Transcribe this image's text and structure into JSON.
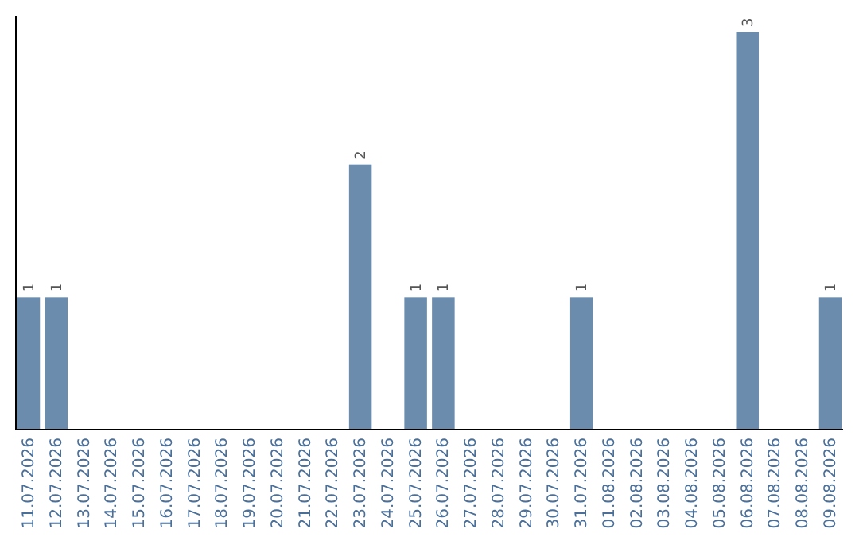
{
  "chart_data": {
    "type": "bar",
    "categories": [
      "11.07.2026",
      "12.07.2026",
      "13.07.2026",
      "14.07.2026",
      "15.07.2026",
      "16.07.2026",
      "17.07.2026",
      "18.07.2026",
      "19.07.2026",
      "20.07.2026",
      "21.07.2026",
      "22.07.2026",
      "23.07.2026",
      "24.07.2026",
      "25.07.2026",
      "26.07.2026",
      "27.07.2026",
      "28.07.2026",
      "29.07.2026",
      "30.07.2026",
      "31.07.2026",
      "01.08.2026",
      "02.08.2026",
      "03.08.2026",
      "04.08.2026",
      "05.08.2026",
      "06.08.2026",
      "07.08.2026",
      "08.08.2026",
      "09.08.2026"
    ],
    "values": [
      1,
      1,
      0,
      0,
      0,
      0,
      0,
      0,
      0,
      0,
      0,
      0,
      2,
      0,
      1,
      1,
      0,
      0,
      0,
      0,
      1,
      0,
      0,
      0,
      0,
      0,
      3,
      0,
      0,
      1
    ],
    "value_labels": [
      "1",
      "1",
      null,
      null,
      null,
      null,
      null,
      null,
      null,
      null,
      null,
      null,
      "2",
      null,
      "1",
      "1",
      null,
      null,
      null,
      null,
      "1",
      null,
      null,
      null,
      null,
      null,
      "3",
      null,
      null,
      "1"
    ],
    "color": "#6b8cad"
  }
}
